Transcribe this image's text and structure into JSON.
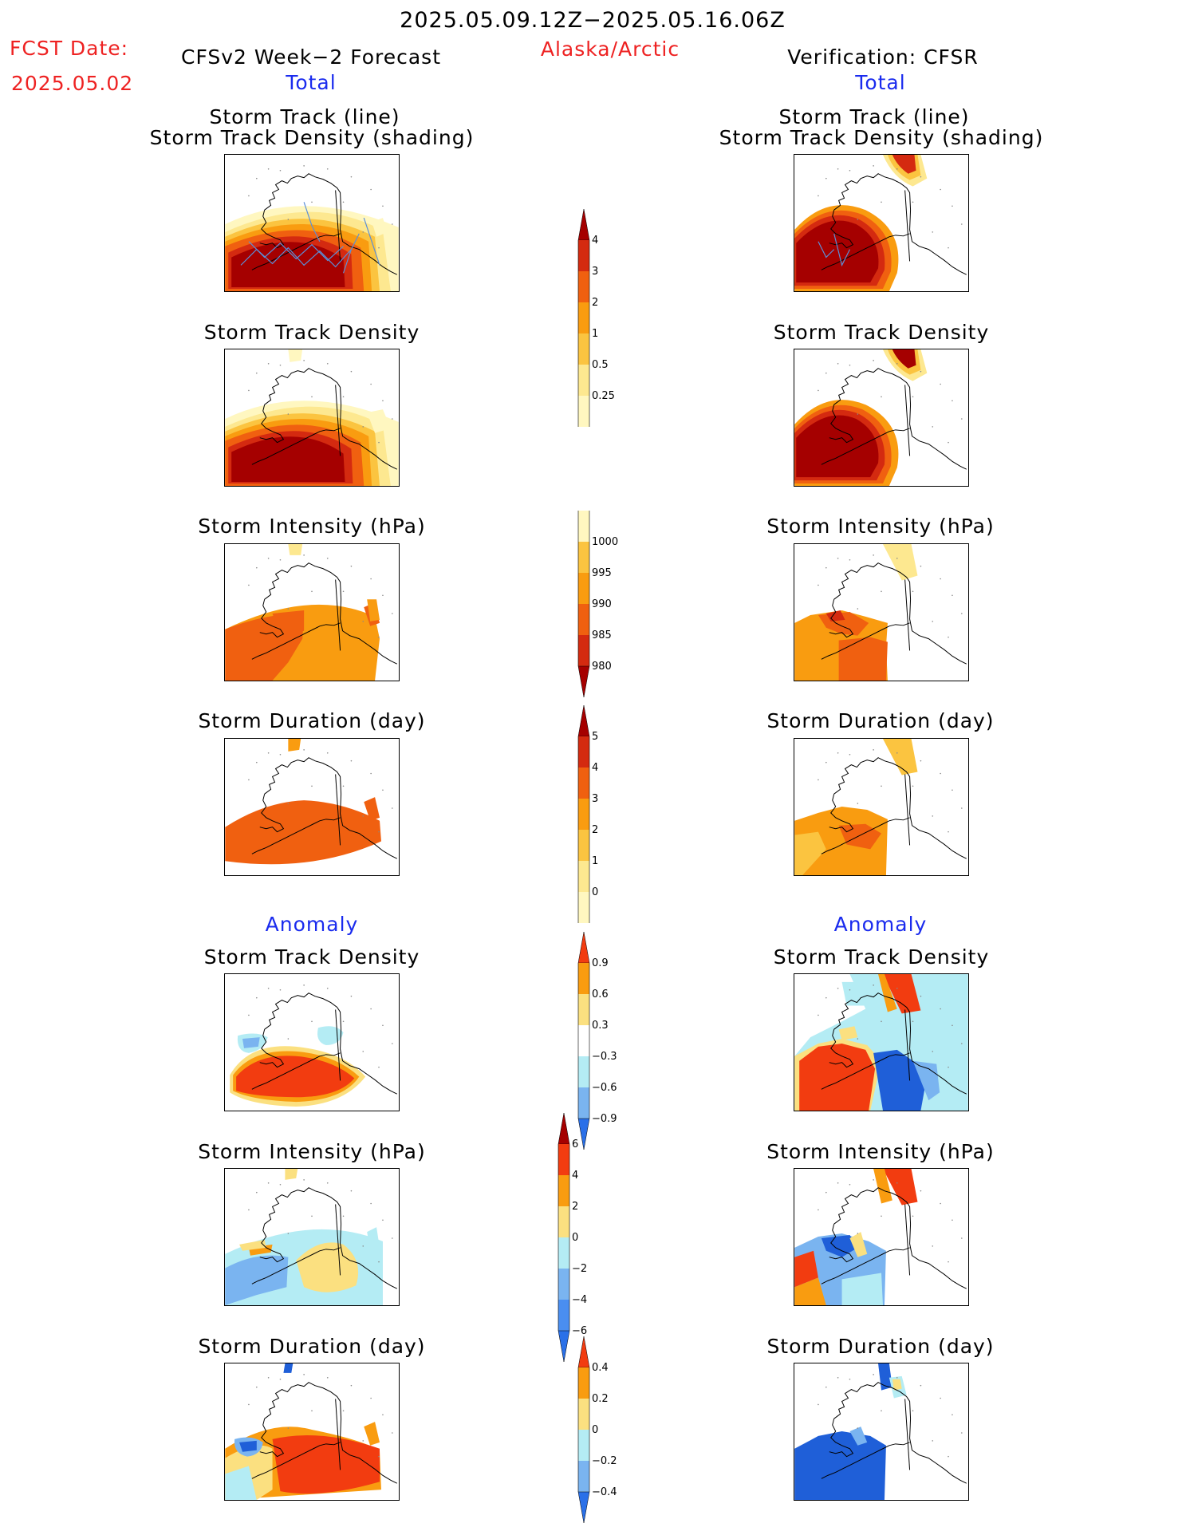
{
  "header": {
    "period": "2025.05.09.12Z−2025.05.16.06Z",
    "fcst_label": "FCST Date:",
    "fcst_date": "2025.05.02",
    "region": "Alaska/Arctic",
    "left_title": "CFSv2 Week−2 Forecast",
    "right_title": "Verification: CFSR",
    "total_label": "Total",
    "anomaly_label": "Anomaly"
  },
  "panel_titles": {
    "track_line": "Storm Track (line)",
    "track_density_shading": "Storm Track Density (shading)",
    "track_density": "Storm Track Density",
    "intensity": "Storm Intensity (hPa)",
    "duration": "Storm Duration (day)"
  },
  "colorbars": {
    "density_total": {
      "labels": [
        "4",
        "3",
        "2",
        "1",
        "0.5",
        "0.25"
      ],
      "colors": [
        "#a50000",
        "#d42a10",
        "#f06010",
        "#f99c10",
        "#fbc440",
        "#fde890",
        "#fff7c0"
      ]
    },
    "intensity_total": {
      "labels": [
        "1000",
        "995",
        "990",
        "985",
        "980"
      ],
      "colors": [
        "#fff7c0",
        "#fbc440",
        "#f99c10",
        "#f06010",
        "#d42a10",
        "#a50000"
      ]
    },
    "duration_total": {
      "labels": [
        "5",
        "4",
        "3",
        "2",
        "1",
        "0"
      ],
      "colors": [
        "#a50000",
        "#d42a10",
        "#f06010",
        "#f99c10",
        "#fbc440",
        "#fde890",
        "#fff7c0"
      ]
    },
    "density_anom": {
      "labels": [
        "0.9",
        "0.6",
        "0.3",
        "−0.3",
        "−0.6",
        "−0.9"
      ],
      "colors": [
        "#f23c10",
        "#f99c10",
        "#fbe080",
        "#ffffff",
        "#b4ecf4",
        "#7ab4f0",
        "#2a70e8"
      ]
    },
    "intensity_anom": {
      "labels": [
        "6",
        "4",
        "2",
        "0",
        "−2",
        "−4",
        "−6"
      ],
      "colors": [
        "#a50000",
        "#f23c10",
        "#f99c10",
        "#fbe080",
        "#b4ecf4",
        "#7ab4f0",
        "#4a8ef0",
        "#2a70e8"
      ]
    },
    "duration_anom": {
      "labels": [
        "0.4",
        "0.2",
        "0",
        "−0.2",
        "−0.4"
      ],
      "colors": [
        "#f23c10",
        "#f99c10",
        "#fbe080",
        "#b4ecf4",
        "#7ab4f0",
        "#2a70e8"
      ]
    }
  },
  "map_colors": {
    "darkred": "#a50000",
    "red": "#d42a10",
    "orange": "#f06010",
    "lightorange": "#f99c10",
    "yellow": "#fbc440",
    "paleyellow": "#fde890",
    "cream": "#fff7c0",
    "anom_red": "#f23c10",
    "anom_orange": "#f99c10",
    "anom_yellow": "#fbe080",
    "anom_lightblue": "#b4ecf4",
    "anom_blue": "#7ab4f0",
    "anom_darkblue": "#1f5fd8",
    "track_line": "#5b8fd8"
  }
}
